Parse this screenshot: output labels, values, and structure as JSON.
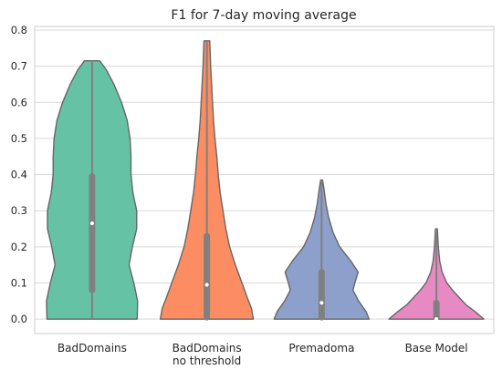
{
  "chart_data": {
    "type": "violin",
    "title": "F1 for 7-day moving average",
    "xlabel": "",
    "ylabel": "",
    "ylim": [
      -0.04,
      0.81
    ],
    "yticks": [
      "0.0",
      "0.1",
      "0.2",
      "0.3",
      "0.4",
      "0.5",
      "0.6",
      "0.7",
      "0.8"
    ],
    "grid": true,
    "categories": [
      {
        "label_lines": [
          "BadDomains"
        ]
      },
      {
        "label_lines": [
          "BadDomains",
          "no threshold"
        ]
      },
      {
        "label_lines": [
          "Premadoma"
        ]
      },
      {
        "label_lines": [
          "Base Model"
        ]
      }
    ],
    "series": [
      {
        "color": "#66c2a5",
        "min": 0.0,
        "q1": 0.075,
        "median": 0.265,
        "q3": 0.4,
        "max": 0.715,
        "profile": [
          [
            0.0,
            0.95
          ],
          [
            0.05,
            0.96
          ],
          [
            0.1,
            0.88
          ],
          [
            0.15,
            0.78
          ],
          [
            0.2,
            0.85
          ],
          [
            0.25,
            0.94
          ],
          [
            0.3,
            0.94
          ],
          [
            0.35,
            0.86
          ],
          [
            0.4,
            0.82
          ],
          [
            0.45,
            0.82
          ],
          [
            0.5,
            0.8
          ],
          [
            0.55,
            0.74
          ],
          [
            0.6,
            0.62
          ],
          [
            0.65,
            0.46
          ],
          [
            0.69,
            0.3
          ],
          [
            0.715,
            0.16
          ]
        ]
      },
      {
        "color": "#fc8d62",
        "min": 0.0,
        "q1": 0.0,
        "median": 0.095,
        "q3": 0.235,
        "max": 0.77,
        "profile": [
          [
            0.0,
            0.98
          ],
          [
            0.03,
            0.94
          ],
          [
            0.06,
            0.85
          ],
          [
            0.1,
            0.74
          ],
          [
            0.15,
            0.6
          ],
          [
            0.2,
            0.48
          ],
          [
            0.25,
            0.4
          ],
          [
            0.3,
            0.34
          ],
          [
            0.35,
            0.28
          ],
          [
            0.4,
            0.24
          ],
          [
            0.45,
            0.21
          ],
          [
            0.5,
            0.17
          ],
          [
            0.55,
            0.14
          ],
          [
            0.6,
            0.12
          ],
          [
            0.65,
            0.1
          ],
          [
            0.7,
            0.08
          ],
          [
            0.74,
            0.07
          ],
          [
            0.77,
            0.06
          ]
        ]
      },
      {
        "color": "#8da0cb",
        "min": 0.0,
        "q1": 0.0,
        "median": 0.045,
        "q3": 0.135,
        "max": 0.385,
        "profile": [
          [
            0.0,
            1.0
          ],
          [
            0.02,
            0.94
          ],
          [
            0.05,
            0.78
          ],
          [
            0.08,
            0.66
          ],
          [
            0.1,
            0.7
          ],
          [
            0.13,
            0.77
          ],
          [
            0.16,
            0.62
          ],
          [
            0.2,
            0.38
          ],
          [
            0.24,
            0.24
          ],
          [
            0.28,
            0.15
          ],
          [
            0.32,
            0.09
          ],
          [
            0.36,
            0.05
          ],
          [
            0.385,
            0.02
          ]
        ]
      },
      {
        "color": "#e78ac3",
        "min": 0.0,
        "q1": 0.0,
        "median": 0.0,
        "q3": 0.05,
        "max": 0.25,
        "profile": [
          [
            0.0,
            1.0
          ],
          [
            0.02,
            0.82
          ],
          [
            0.04,
            0.62
          ],
          [
            0.06,
            0.48
          ],
          [
            0.08,
            0.34
          ],
          [
            0.1,
            0.22
          ],
          [
            0.13,
            0.12
          ],
          [
            0.16,
            0.07
          ],
          [
            0.2,
            0.04
          ],
          [
            0.25,
            0.02
          ]
        ]
      }
    ]
  }
}
